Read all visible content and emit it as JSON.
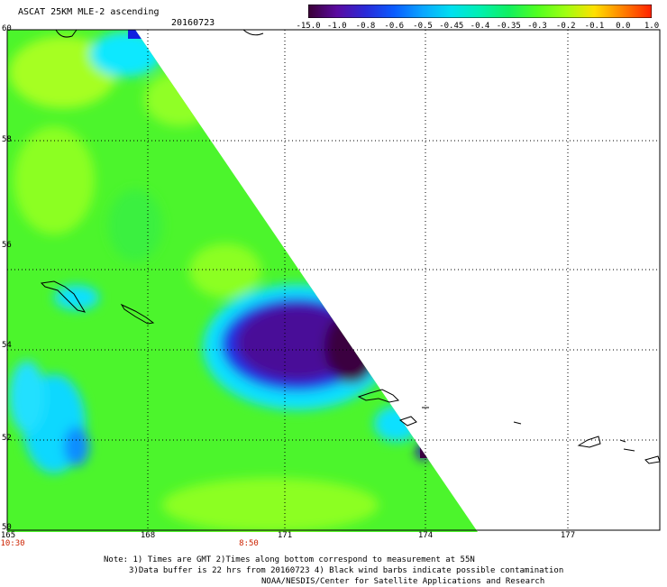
{
  "header": {
    "title": "ASCAT 25KM MLE-2 ascending",
    "date": "20160723"
  },
  "colorbar": {
    "ticks": [
      "-15.0",
      "-1.0",
      "-0.8",
      "-0.6",
      "-0.5",
      "-0.45",
      "-0.4",
      "-0.35",
      "-0.3",
      "-0.2",
      "-0.1",
      "0.0",
      "1.0"
    ],
    "colors": [
      "#3a0035",
      "#5a0aa0",
      "#2a2ad8",
      "#0a5cff",
      "#0aa6ff",
      "#00e0f0",
      "#00f0b0",
      "#10f060",
      "#50ff20",
      "#a0ff10",
      "#ffe000",
      "#ff8000",
      "#ff2000"
    ]
  },
  "map": {
    "lat_labels": [
      "60",
      "58",
      "56",
      "54",
      "52",
      "50"
    ],
    "lon_labels": [
      "165",
      "168",
      "171",
      "174",
      "177"
    ],
    "time_labels": [
      "10:30",
      "8:50"
    ],
    "palette": {
      "background_green": "#50ff30",
      "dark": "#3a0040",
      "purple": "#4a0898",
      "blue": "#1020e0",
      "cyan": "#10e8ff",
      "yellow_green": "#a8ff20"
    }
  },
  "footer": {
    "note1": "Note: 1) Times are GMT 2)Times along bottom correspond to measurement at 55N",
    "note2": "3)Data buffer is 22 hrs from 20160723 4) Black wind barbs indicate possible contamination",
    "credit": "NOAA/NESDIS/Center for Satellite Applications and Research"
  }
}
